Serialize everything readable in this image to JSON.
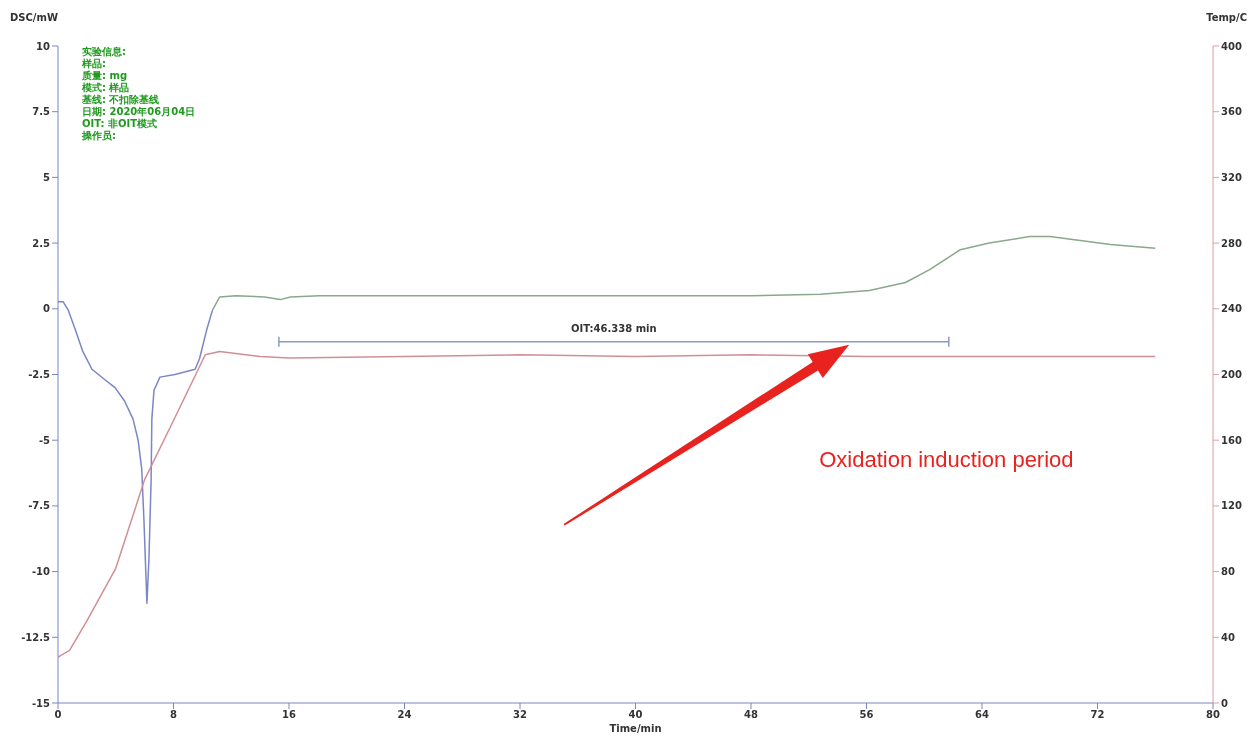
{
  "chart_data": {
    "type": "line",
    "xlabel": "Time/min",
    "ylabel": "DSC/mW",
    "y2label": "Temp/C",
    "xlim": [
      0,
      80
    ],
    "xticks": [
      0,
      8,
      16,
      24,
      32,
      40,
      48,
      56,
      64,
      72,
      80
    ],
    "ylim": [
      -15,
      10
    ],
    "yticks": [
      -15,
      -12.5,
      -10,
      -7.5,
      -5,
      -2.5,
      0,
      2.5,
      5,
      7.5,
      10
    ],
    "y2lim": [
      0,
      400
    ],
    "y2ticks": [
      0,
      40,
      80,
      120,
      160,
      200,
      240,
      280,
      320,
      360,
      400
    ],
    "marker": "none",
    "line_style": "solid",
    "series": [
      {
        "color": "#7b86c6",
        "x": [
          0,
          0.35,
          0.7,
          1.2,
          1.7,
          2.35,
          3.25,
          3.95,
          4.6,
          5.2,
          5.55,
          5.8,
          5.95,
          6.1,
          6.16,
          6.3,
          6.45,
          6.5,
          6.65,
          7.06,
          8.1,
          9.5,
          9.8,
          10.3,
          10.7
        ],
        "values": [
          0.27,
          0.27,
          -0.04,
          -0.8,
          -1.6,
          -2.3,
          -2.7,
          -3.0,
          -3.5,
          -4.2,
          -5.0,
          -6.1,
          -8.0,
          -10.3,
          -11.2,
          -9.5,
          -6.5,
          -4.2,
          -3.1,
          -2.6,
          -2.5,
          -2.3,
          -1.9,
          -0.8,
          -0.05
        ]
      },
      {
        "color": "#8aa88a",
        "x": [
          10.7,
          11.2,
          12.3,
          14.3,
          15.4,
          16.1,
          18.1,
          24,
          32,
          40,
          48,
          52.8,
          56.2,
          58.7,
          60.4,
          62.5,
          64.5,
          67.3,
          68.7,
          70.8,
          72.9,
          76
        ],
        "values": [
          -0.05,
          0.45,
          0.5,
          0.45,
          0.35,
          0.45,
          0.5,
          0.5,
          0.5,
          0.5,
          0.5,
          0.55,
          0.7,
          1.0,
          1.5,
          2.25,
          2.5,
          2.75,
          2.75,
          2.6,
          2.45,
          2.3
        ]
      },
      {
        "color": "#d08f95",
        "axis": "y2",
        "x": [
          0,
          0.8,
          2,
          4,
          6,
          8,
          10.2,
          11.2,
          14,
          16,
          24,
          32,
          40,
          48,
          56,
          64,
          72,
          76
        ],
        "values": [
          28,
          32,
          50,
          82,
          136,
          172,
          212,
          214,
          211,
          210,
          211,
          212,
          211,
          212,
          211,
          211,
          211,
          211
        ]
      },
      {
        "color": "#8a9bc0",
        "x": [
          15.3,
          61.7
        ],
        "values": [
          -1.25,
          -1.25
        ]
      }
    ],
    "annotations": [
      "实验信息:",
      "样品:",
      "质量: mg",
      "模式: 样品",
      "基线: 不扣除基线",
      "日期: 2020年06月04日",
      "OIT: 非OIT模式",
      "操作员:",
      {
        "text": "OIT:46.338 min",
        "x": 38.5,
        "y": -1.25
      },
      "Oxidation induction period"
    ]
  }
}
